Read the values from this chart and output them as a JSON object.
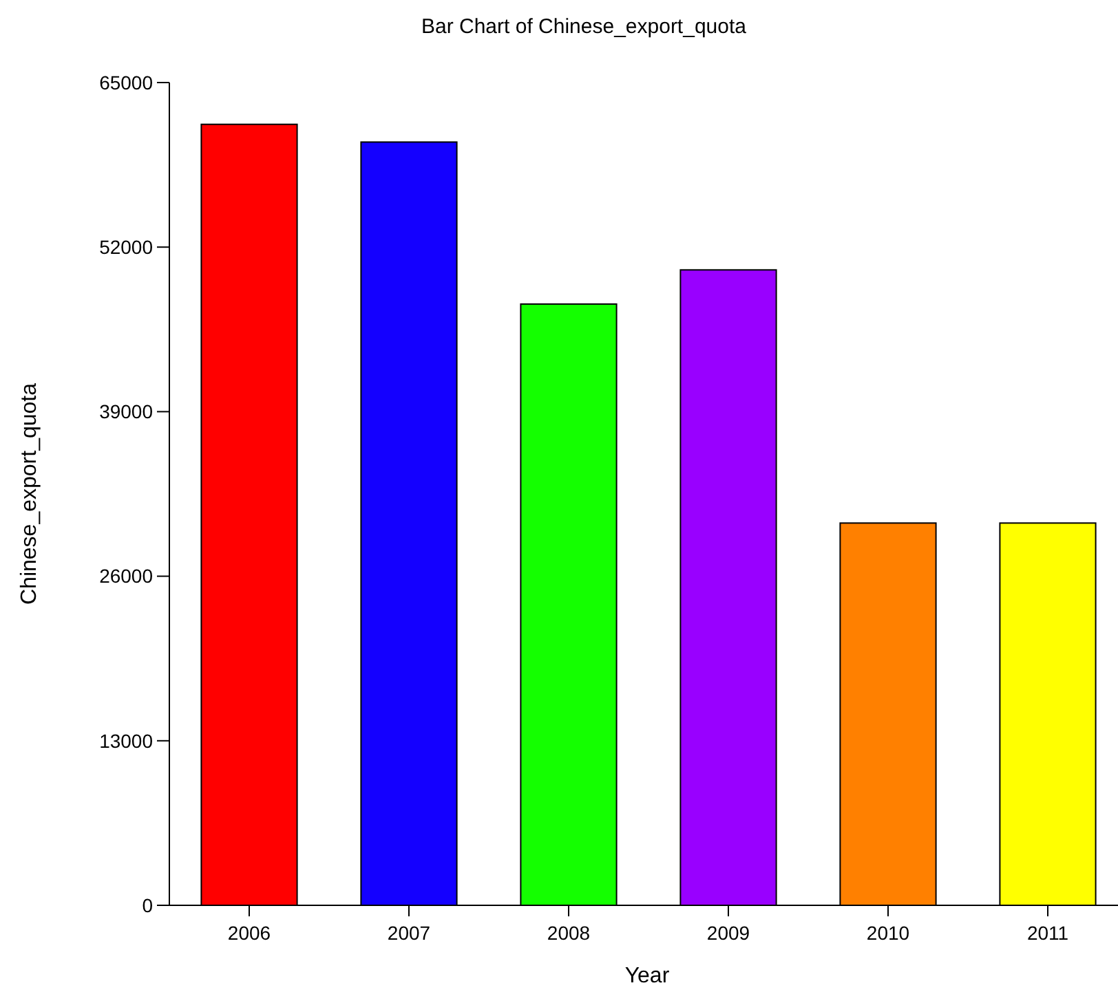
{
  "chart_data": {
    "type": "bar",
    "title": "Bar Chart of Chinese_export_quota",
    "xlabel": "Year",
    "ylabel": "Chinese_export_quota",
    "categories": [
      "2006",
      "2007",
      "2008",
      "2009",
      "2010",
      "2011"
    ],
    "values": [
      61700,
      60300,
      47500,
      50200,
      30200,
      30200
    ],
    "colors": [
      "#ff0000",
      "#1400ff",
      "#14ff00",
      "#9900ff",
      "#ff8000",
      "#ffff00"
    ],
    "ylim": [
      0,
      65000
    ],
    "yticks": [
      0,
      13000,
      26000,
      39000,
      52000,
      65000
    ],
    "grid": false
  }
}
